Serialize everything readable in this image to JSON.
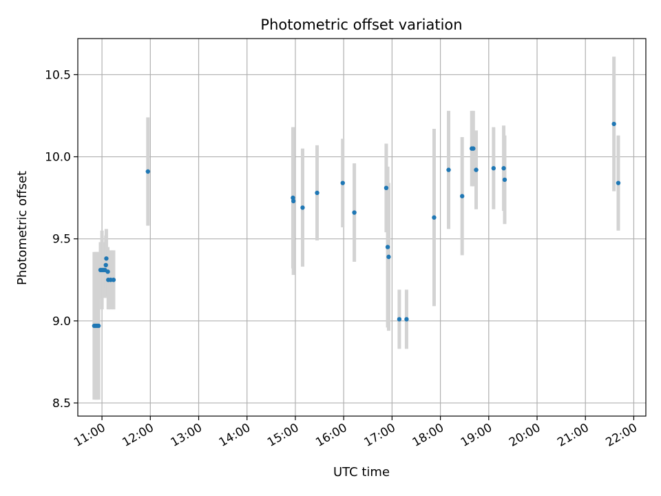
{
  "chart_data": {
    "type": "scatter",
    "title": "Photometric offset variation",
    "xlabel": "UTC time",
    "ylabel": "Photometric offset",
    "x_unit": "hours UTC",
    "xlim": [
      10.5,
      22.25
    ],
    "ylim": [
      8.42,
      10.72
    ],
    "x_ticks": [
      {
        "value": 11,
        "label": "11:00"
      },
      {
        "value": 12,
        "label": "12:00"
      },
      {
        "value": 13,
        "label": "13:00"
      },
      {
        "value": 14,
        "label": "14:00"
      },
      {
        "value": 15,
        "label": "15:00"
      },
      {
        "value": 16,
        "label": "16:00"
      },
      {
        "value": 17,
        "label": "17:00"
      },
      {
        "value": 18,
        "label": "18:00"
      },
      {
        "value": 19,
        "label": "19:00"
      },
      {
        "value": 20,
        "label": "20:00"
      },
      {
        "value": 21,
        "label": "21:00"
      },
      {
        "value": 22,
        "label": "22:00"
      }
    ],
    "y_ticks": [
      {
        "value": 8.5,
        "label": "8.5"
      },
      {
        "value": 9.0,
        "label": "9.0"
      },
      {
        "value": 9.5,
        "label": "9.5"
      },
      {
        "value": 10.0,
        "label": "10.0"
      },
      {
        "value": 10.5,
        "label": "10.5"
      }
    ],
    "grid": true,
    "marker_color": "#1f77b4",
    "errorbar_color": "#d3d3d3",
    "points": [
      {
        "x": 10.84,
        "y": 8.97,
        "err": 0.45
      },
      {
        "x": 10.87,
        "y": 8.97,
        "err": 0.45
      },
      {
        "x": 10.9,
        "y": 8.97,
        "err": 0.45
      },
      {
        "x": 10.93,
        "y": 8.97,
        "err": 0.45
      },
      {
        "x": 10.97,
        "y": 9.31,
        "err": 0.17
      },
      {
        "x": 11.0,
        "y": 9.31,
        "err": 0.24
      },
      {
        "x": 11.03,
        "y": 9.31,
        "err": 0.17
      },
      {
        "x": 11.06,
        "y": 9.31,
        "err": 0.17
      },
      {
        "x": 11.08,
        "y": 9.34,
        "err": 0.18
      },
      {
        "x": 11.09,
        "y": 9.38,
        "err": 0.18
      },
      {
        "x": 11.12,
        "y": 9.3,
        "err": 0.15
      },
      {
        "x": 11.13,
        "y": 9.25,
        "err": 0.18
      },
      {
        "x": 11.18,
        "y": 9.25,
        "err": 0.18
      },
      {
        "x": 11.24,
        "y": 9.25,
        "err": 0.18
      },
      {
        "x": 11.95,
        "y": 9.91,
        "err": 0.33
      },
      {
        "x": 14.95,
        "y": 9.75,
        "err": 0.43
      },
      {
        "x": 14.96,
        "y": 9.73,
        "err": 0.45
      },
      {
        "x": 15.15,
        "y": 9.69,
        "err": 0.36
      },
      {
        "x": 15.45,
        "y": 9.78,
        "err": 0.29
      },
      {
        "x": 15.98,
        "y": 9.84,
        "err": 0.27
      },
      {
        "x": 16.22,
        "y": 9.66,
        "err": 0.3
      },
      {
        "x": 16.88,
        "y": 9.81,
        "err": 0.27
      },
      {
        "x": 16.91,
        "y": 9.45,
        "err": 0.49
      },
      {
        "x": 16.93,
        "y": 9.39,
        "err": 0.45
      },
      {
        "x": 17.15,
        "y": 9.01,
        "err": 0.18
      },
      {
        "x": 17.3,
        "y": 9.01,
        "err": 0.18
      },
      {
        "x": 17.87,
        "y": 9.63,
        "err": 0.54
      },
      {
        "x": 18.17,
        "y": 9.92,
        "err": 0.36
      },
      {
        "x": 18.45,
        "y": 9.76,
        "err": 0.36
      },
      {
        "x": 18.65,
        "y": 10.05,
        "err": 0.23
      },
      {
        "x": 18.68,
        "y": 10.05,
        "err": 0.23
      },
      {
        "x": 18.74,
        "y": 9.92,
        "err": 0.24
      },
      {
        "x": 19.1,
        "y": 9.93,
        "err": 0.25
      },
      {
        "x": 19.31,
        "y": 9.93,
        "err": 0.26
      },
      {
        "x": 19.33,
        "y": 9.86,
        "err": 0.27
      },
      {
        "x": 21.59,
        "y": 10.2,
        "err": 0.41
      },
      {
        "x": 21.68,
        "y": 9.84,
        "err": 0.29
      }
    ]
  }
}
